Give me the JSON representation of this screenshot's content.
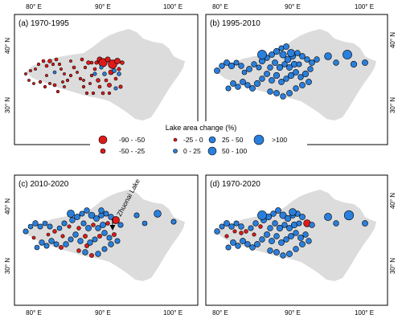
{
  "colors": {
    "decrease": "#e01a1a",
    "increase": "#2a7fdc",
    "land": "#dcdcdc",
    "outline": "#000000",
    "frame": "#000000",
    "arrow": "#000000"
  },
  "axes": {
    "x_ticks": [
      "80° E",
      "90° E",
      "100° E"
    ],
    "y_ticks": [
      "40° N",
      "30° N"
    ]
  },
  "panels": [
    {
      "label": "(a) 1970-1995"
    },
    {
      "label": "(b) 1995-2010"
    },
    {
      "label": "(c) 2010-2020",
      "annotation": "Zhuonai Lake"
    },
    {
      "label": "(d) 1970-2020"
    }
  ],
  "legend": {
    "title": "Lake area change (%)",
    "items": [
      {
        "label": "-90 - -50",
        "color": "decrease",
        "size": 5
      },
      {
        "label": "-25 - 0",
        "color": "decrease",
        "size": 2
      },
      {
        "label": "25 - 50",
        "color": "increase",
        "size": 4
      },
      {
        "label": ">100",
        "color": "increase",
        "size": 6
      },
      {
        "label": "-50 - -25",
        "color": "decrease",
        "size": 3
      },
      {
        "label": "0 - 25",
        "color": "increase",
        "size": 2.5
      },
      {
        "label": "50 - 100",
        "color": "increase",
        "size": 5
      }
    ]
  }
}
